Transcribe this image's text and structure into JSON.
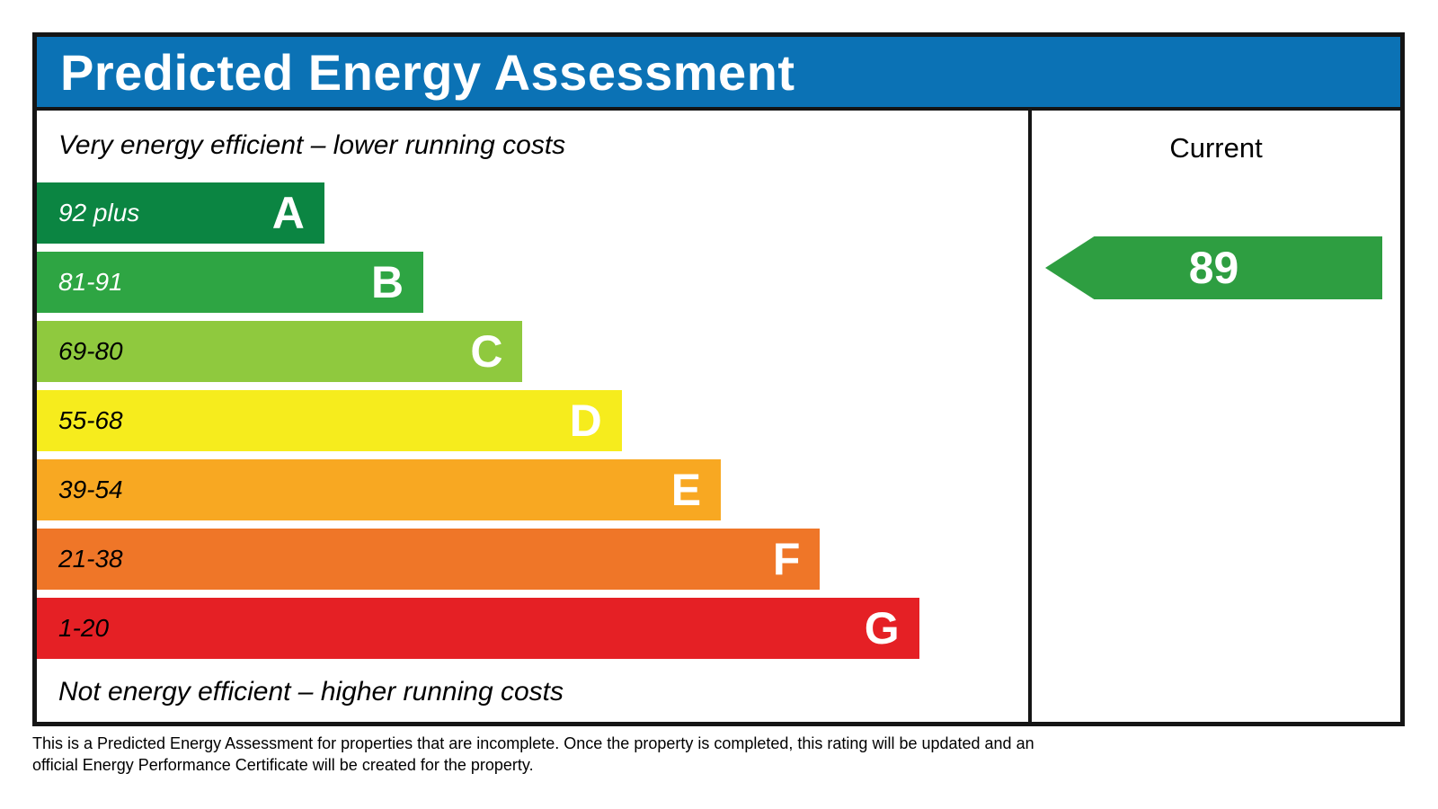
{
  "header": {
    "title": "Predicted Energy Assessment",
    "bg_color": "#0b72b5"
  },
  "chart": {
    "top_caption": "Very energy efficient – lower running costs",
    "bottom_caption": "Not energy efficient – higher running costs",
    "bands": [
      {
        "letter": "A",
        "range": "92 plus",
        "color": "#0b8542",
        "label_color": "#ffffff",
        "width_pct": 29
      },
      {
        "letter": "B",
        "range": "81-91",
        "color": "#2ea543",
        "label_color": "#ffffff",
        "width_pct": 39
      },
      {
        "letter": "C",
        "range": "69-80",
        "color": "#8fc93e",
        "label_color": "#000000",
        "width_pct": 49
      },
      {
        "letter": "D",
        "range": "55-68",
        "color": "#f6ec1d",
        "label_color": "#000000",
        "width_pct": 59
      },
      {
        "letter": "E",
        "range": "39-54",
        "color": "#f8a822",
        "label_color": "#000000",
        "width_pct": 69
      },
      {
        "letter": "F",
        "range": "21-38",
        "color": "#ef7628",
        "label_color": "#000000",
        "width_pct": 79
      },
      {
        "letter": "G",
        "range": "1-20",
        "color": "#e52025",
        "label_color": "#000000",
        "width_pct": 89
      }
    ]
  },
  "current_panel": {
    "heading": "Current",
    "value": "89",
    "arrow_color": "#2e9e41"
  },
  "footer": {
    "line1": "This is a Predicted Energy Assessment for properties that are incomplete. Once the property is completed, this rating will be updated and an",
    "line2": "official Energy Performance Certificate will be created for the property."
  },
  "chart_data": {
    "type": "bar",
    "title": "Predicted Energy Assessment",
    "categories": [
      "A",
      "B",
      "C",
      "D",
      "E",
      "F",
      "G"
    ],
    "band_ranges": [
      "92 plus",
      "81-91",
      "69-80",
      "55-68",
      "39-54",
      "21-38",
      "1-20"
    ],
    "band_colors": [
      "#0b8542",
      "#2ea543",
      "#8fc93e",
      "#f6ec1d",
      "#f8a822",
      "#ef7628",
      "#e52025"
    ],
    "relative_widths_pct": [
      29,
      39,
      49,
      59,
      69,
      79,
      89
    ],
    "current_rating": 89,
    "current_band": "B",
    "legend_entries": [
      "Current"
    ],
    "annotations": [
      "Very energy efficient – lower running costs",
      "Not energy efficient – higher running costs"
    ],
    "grid": false,
    "legend_position": "right-panel-header"
  }
}
